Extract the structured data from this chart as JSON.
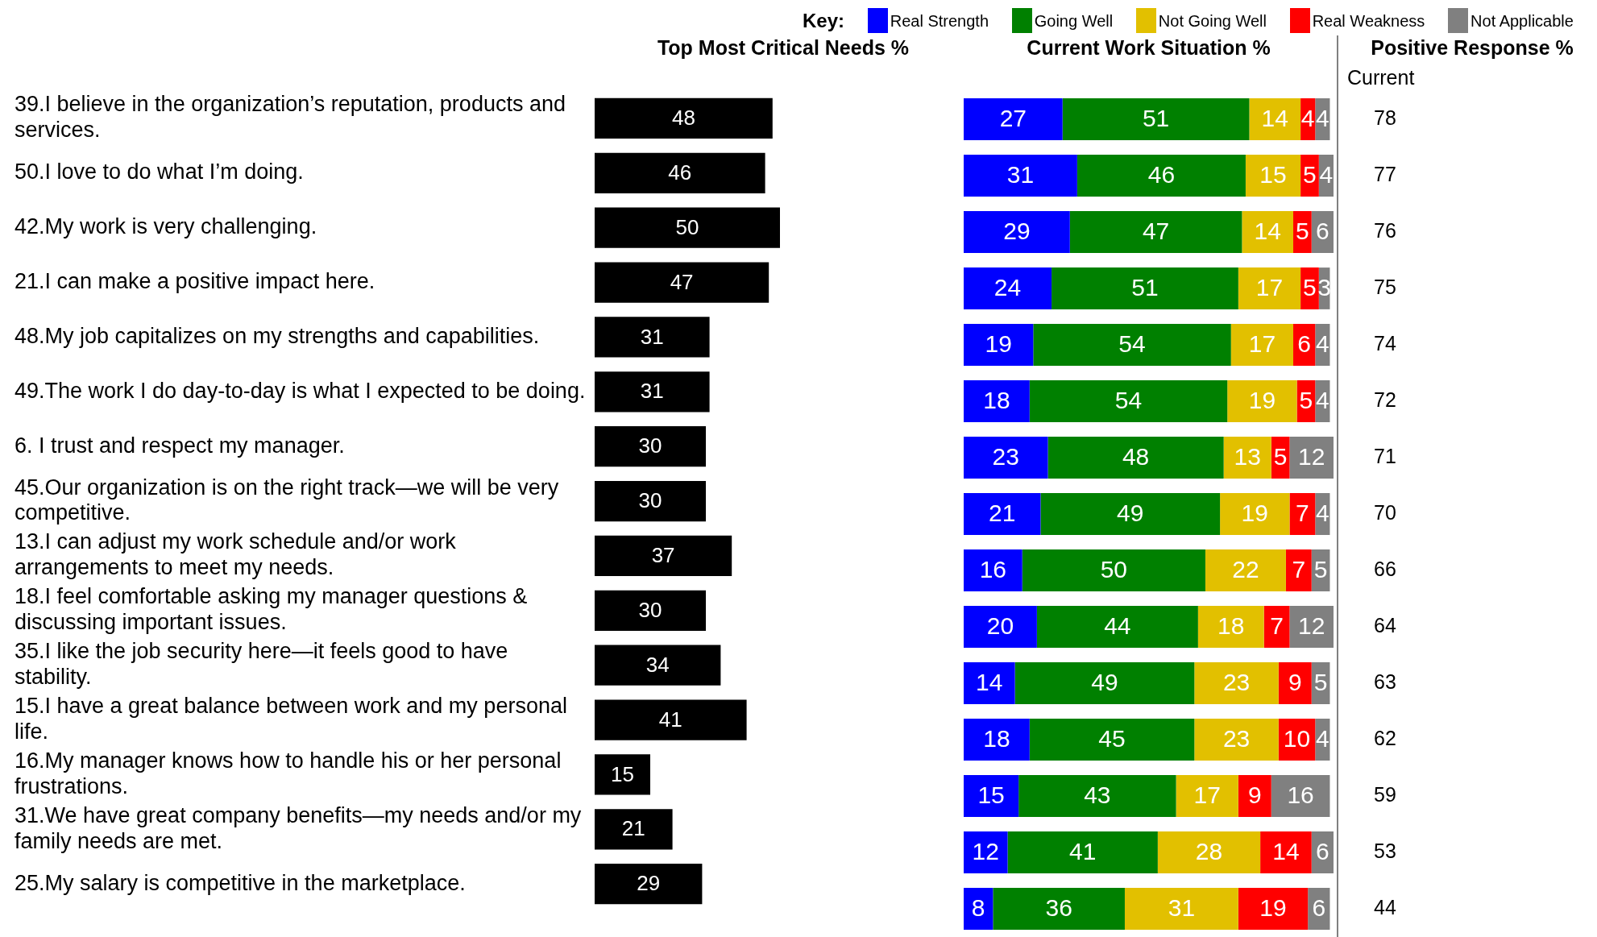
{
  "chart_data": [
    {
      "type": "bar",
      "orientation": "horizontal",
      "title": "Top Most Critical Needs %",
      "categories": [
        "39.I believe in the organization’s reputation, products and services.",
        "50.I love to do what I’m doing.",
        "42.My work is very challenging.",
        "21.I can make a positive impact here.",
        "48.My job capitalizes on my strengths and capabilities.",
        "49.The work I do day-to-day is what I expected to be doing.",
        "6. I trust and respect my manager.",
        "45.Our organization is on the right track—we will be very competitive.",
        "13.I can adjust my work schedule and/or work arrangements to meet my needs.",
        "18.I feel comfortable asking my manager questions & discussing important issues.",
        "35.I like the job security here—it feels good to have stability.",
        "15.I have a great balance between work and my personal life.",
        "16.My manager knows how to handle his or her personal frustrations.",
        "31.We have great company benefits—my needs and/or my family needs are met.",
        "25.My salary is competitive in the marketplace."
      ],
      "values": [
        48,
        46,
        50,
        47,
        31,
        31,
        30,
        30,
        37,
        30,
        34,
        41,
        15,
        21,
        29
      ],
      "color": "#000000",
      "data_labels": true,
      "tick_labels": "y"
    },
    {
      "type": "bar",
      "orientation": "horizontal",
      "stacked": true,
      "title": "Current Work Situation %",
      "legend_title": "Key:",
      "legend": "top",
      "categories": [
        null,
        null,
        null,
        null,
        null,
        null,
        null,
        null,
        null,
        null,
        null,
        null,
        null,
        null,
        null
      ],
      "series": [
        {
          "name": "Real Strength",
          "color": "#0000ff",
          "values": [
            27,
            31,
            29,
            24,
            19,
            18,
            23,
            21,
            16,
            20,
            14,
            18,
            15,
            12,
            8
          ]
        },
        {
          "name": "Going Well",
          "color": "#008000",
          "values": [
            51,
            46,
            47,
            51,
            54,
            54,
            48,
            49,
            50,
            44,
            49,
            45,
            43,
            41,
            36
          ]
        },
        {
          "name": "Not Going Well",
          "color": "#e2c000",
          "values": [
            14,
            15,
            14,
            17,
            17,
            19,
            13,
            19,
            22,
            18,
            23,
            23,
            17,
            28,
            31
          ]
        },
        {
          "name": "Real Weakness",
          "color": "#ff0000",
          "values": [
            4,
            5,
            5,
            5,
            6,
            5,
            5,
            7,
            7,
            7,
            9,
            10,
            9,
            14,
            19
          ]
        },
        {
          "name": "Not Applicable",
          "color": "#808080",
          "values": [
            4,
            4,
            6,
            3,
            4,
            4,
            12,
            4,
            5,
            12,
            5,
            4,
            16,
            6,
            6
          ]
        }
      ],
      "data_labels": true,
      "tick_labels": false
    },
    {
      "type": "other",
      "title": "Positive Response %",
      "subtitle": "Current",
      "values": [
        78,
        77,
        76,
        75,
        74,
        72,
        71,
        70,
        66,
        64,
        63,
        62,
        59,
        53,
        44
      ],
      "data_labels": true
    }
  ]
}
